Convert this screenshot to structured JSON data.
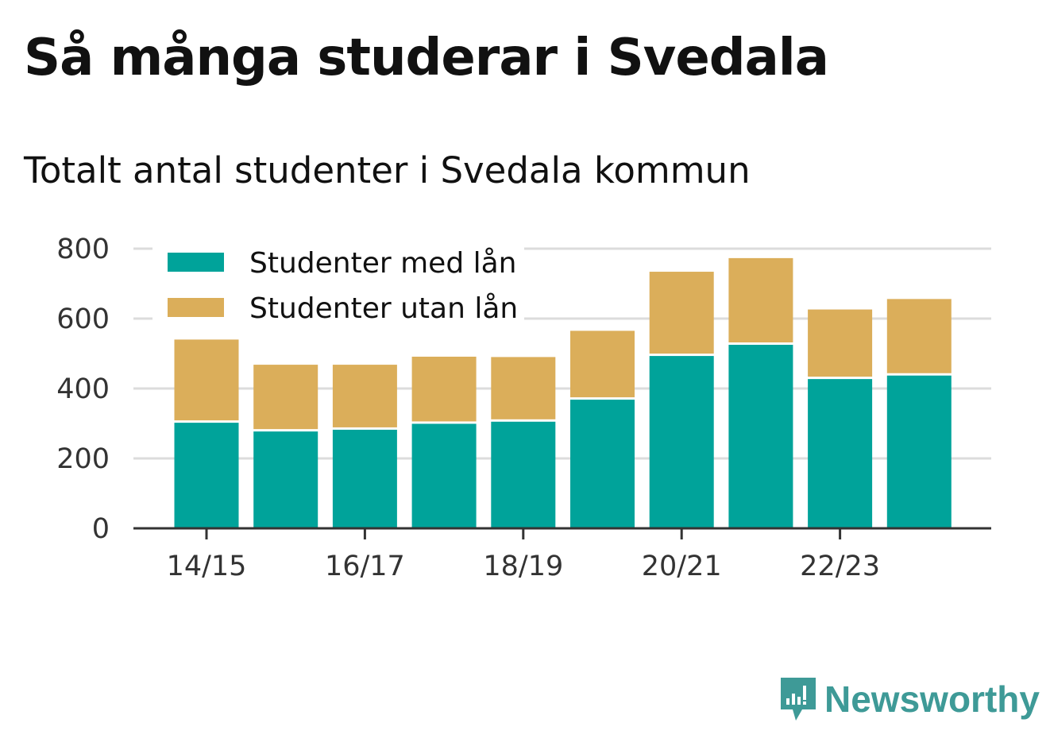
{
  "title": "Så många studerar i Svedala",
  "subtitle": "Totalt antal studenter i Svedala kommun",
  "brand": {
    "name": "Newsworthy",
    "icon": "bar-chart-speech-icon",
    "color": "#3e9a97"
  },
  "chart_data": {
    "type": "bar",
    "stacked": true,
    "categories": [
      "14/15",
      "15/16",
      "16/17",
      "17/18",
      "18/19",
      "19/20",
      "20/21",
      "21/22",
      "22/23",
      "23/24"
    ],
    "x_tick_labels": [
      "14/15",
      "",
      "16/17",
      "",
      "18/19",
      "",
      "20/21",
      "",
      "22/23",
      ""
    ],
    "series": [
      {
        "name": "Studenter med lån",
        "color": "#00a39a",
        "values": [
          302,
          277,
          282,
          299,
          305,
          368,
          493,
          525,
          427,
          437
        ]
      },
      {
        "name": "Studenter utan lån",
        "color": "#dbae5a",
        "values": [
          238,
          191,
          186,
          192,
          185,
          197,
          241,
          248,
          199,
          219
        ]
      }
    ],
    "ylim": [
      0,
      800
    ],
    "yticks": [
      0,
      200,
      400,
      600,
      800
    ],
    "grid": true,
    "legend_position": "top-left"
  }
}
